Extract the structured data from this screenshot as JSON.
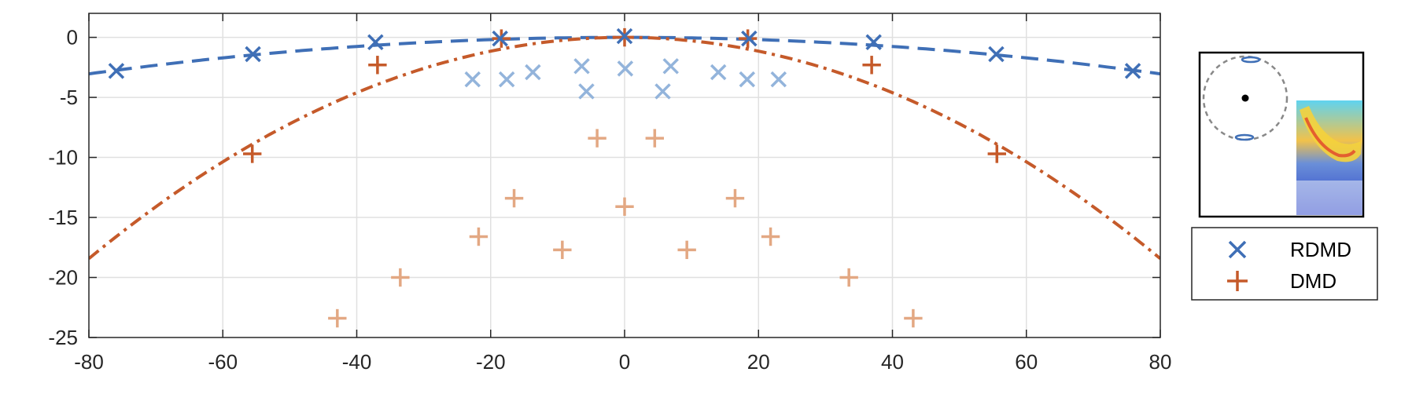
{
  "chart_data": {
    "type": "scatter",
    "title": "",
    "xlabel": "",
    "ylabel": "",
    "xlim": [
      -80,
      80
    ],
    "ylim": [
      -25,
      2
    ],
    "xticks": [
      -80,
      -60,
      -40,
      -20,
      0,
      20,
      40,
      60,
      80
    ],
    "yticks": [
      0,
      -5,
      -10,
      -15,
      -20,
      -25
    ],
    "xtick_labels": [
      "-80",
      "-60",
      "-40",
      "-20",
      "0",
      "20",
      "40",
      "60",
      "80"
    ],
    "ytick_labels": [
      "0",
      "-5",
      "-10",
      "-15",
      "-20",
      "-25"
    ],
    "grid": true,
    "legend_position": "right",
    "series": [
      {
        "name": "RDMD",
        "marker": "x",
        "color": "#3f6fb6",
        "points": [
          [
            -75.9,
            -2.8
          ],
          [
            -55.5,
            -1.4
          ],
          [
            -37.2,
            -0.4
          ],
          [
            -18.6,
            -0.1
          ],
          [
            0,
            0.1
          ],
          [
            18.6,
            -0.1
          ],
          [
            37.2,
            -0.4
          ],
          [
            55.5,
            -1.4
          ],
          [
            75.9,
            -2.8
          ]
        ]
      },
      {
        "name": "",
        "marker": "x",
        "color": "#93b4db",
        "points": [
          [
            -22.7,
            -3.5
          ],
          [
            -17.6,
            -3.5
          ],
          [
            -13.7,
            -2.9
          ],
          [
            -6.4,
            -2.4
          ],
          [
            -5.7,
            -4.5
          ],
          [
            0.1,
            -2.6
          ],
          [
            5.7,
            -4.5
          ],
          [
            6.9,
            -2.4
          ],
          [
            14.0,
            -2.9
          ],
          [
            18.3,
            -3.5
          ],
          [
            23.0,
            -3.5
          ]
        ]
      },
      {
        "name": "DMD",
        "marker": "+",
        "color": "#c55a2a",
        "points": [
          [
            -55.6,
            -9.7
          ],
          [
            -36.9,
            -2.3
          ],
          [
            -18.4,
            -0.1
          ],
          [
            0,
            0
          ],
          [
            18.4,
            -0.1
          ],
          [
            36.9,
            -2.3
          ],
          [
            55.6,
            -9.7
          ]
        ]
      },
      {
        "name": "",
        "marker": "+",
        "color": "#e3a883",
        "points": [
          [
            -4.1,
            -8.4
          ],
          [
            4.5,
            -8.4
          ],
          [
            -16.5,
            -13.4
          ],
          [
            16.5,
            -13.4
          ],
          [
            0,
            -14.1
          ],
          [
            -21.8,
            -16.6
          ],
          [
            21.8,
            -16.6
          ],
          [
            -9.3,
            -17.7
          ],
          [
            9.3,
            -17.7
          ],
          [
            -33.5,
            -20.0
          ],
          [
            33.5,
            -20.0
          ],
          [
            -42.9,
            -23.4
          ],
          [
            43.1,
            -23.4
          ]
        ]
      }
    ],
    "curves": [
      {
        "name": "RDMD fit",
        "style": "dashed",
        "color": "#3f6fb6",
        "coef": -0.000475
      },
      {
        "name": "DMD fit",
        "style": "dashdot",
        "color": "#c55a2a",
        "coef": -0.00288
      }
    ],
    "legend": [
      {
        "label": "RDMD",
        "marker": "x",
        "color": "#3f6fb6"
      },
      {
        "label": "DMD",
        "marker": "+",
        "color": "#c55a2a"
      }
    ],
    "inset": {
      "type": "spectrum-and-flow-field",
      "circle_style": "dashed",
      "circle_color": "#888888",
      "eigen_color": "#3f6fb6"
    }
  }
}
